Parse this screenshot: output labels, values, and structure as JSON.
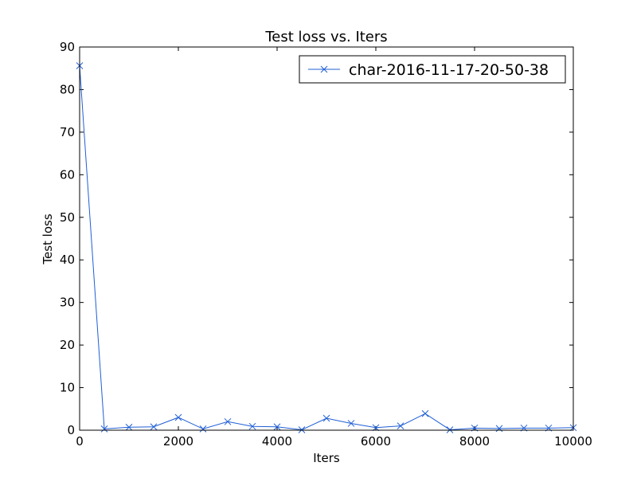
{
  "chart_data": {
    "type": "line",
    "title": "Test loss  vs. Iters",
    "xlabel": "Iters",
    "ylabel": "Test loss",
    "xlim": [
      0,
      10000
    ],
    "ylim": [
      0,
      90
    ],
    "x_ticks": [
      "0",
      "2000",
      "4000",
      "6000",
      "8000",
      "10000"
    ],
    "y_ticks": [
      "0",
      "10",
      "20",
      "30",
      "40",
      "50",
      "60",
      "70",
      "80",
      "90"
    ],
    "x_tick_values": [
      0,
      2000,
      4000,
      6000,
      8000,
      10000
    ],
    "y_tick_values": [
      0,
      10,
      20,
      30,
      40,
      50,
      60,
      70,
      80,
      90
    ],
    "grid": false,
    "legend_position": "top-right",
    "series": [
      {
        "name": "char-2016-11-17-20-50-38",
        "color": "#1f5fd6",
        "marker": "x",
        "x": [
          0,
          500,
          1000,
          1500,
          2000,
          2500,
          3000,
          3500,
          4000,
          4500,
          5000,
          5500,
          6000,
          6500,
          7000,
          7500,
          8000,
          8500,
          9000,
          9500,
          10000
        ],
        "y": [
          85.6,
          0.3,
          0.7,
          0.8,
          3.0,
          0.3,
          2.0,
          0.9,
          0.8,
          0.1,
          2.8,
          1.6,
          0.6,
          1.0,
          3.9,
          0.1,
          0.5,
          0.4,
          0.5,
          0.5,
          0.6
        ]
      }
    ]
  }
}
